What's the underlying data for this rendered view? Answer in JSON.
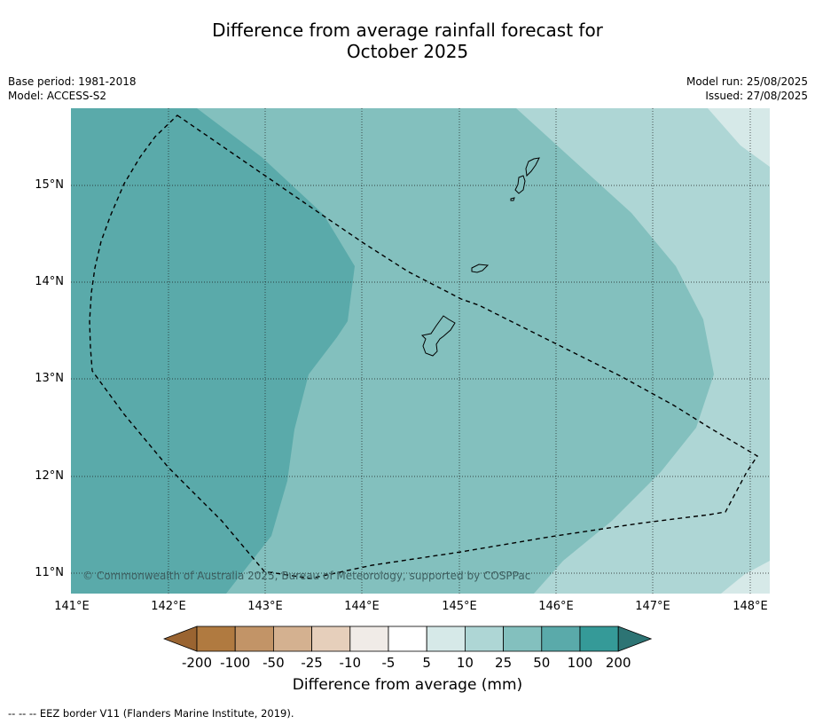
{
  "title_line1": "Difference from average rainfall forecast for",
  "title_line2": "October 2025",
  "meta": {
    "base_period": "Base period: 1981-2018",
    "model": "Model: ACCESS-S2",
    "model_run": "Model run: 25/08/2025",
    "issued": "Issued: 27/08/2025"
  },
  "map": {
    "lat_labels": [
      "15°N",
      "14°N",
      "13°N",
      "12°N",
      "11°N"
    ],
    "lon_labels": [
      "141°E",
      "142°E",
      "143°E",
      "144°E",
      "145°E",
      "146°E",
      "147°E",
      "148°E"
    ],
    "copyright": "© Commonwealth of Australia 2025, Bureau of Meteorology, supported by COSPPac",
    "colors": {
      "band_100": "#5aaaaa",
      "band_50": "#83c0be",
      "band_25": "#aed6d5",
      "band_10": "#d6e9e8"
    }
  },
  "colorbar": {
    "labels": [
      "-200",
      "-100",
      "-50",
      "-25",
      "-10",
      "-5",
      "5",
      "10",
      "25",
      "50",
      "100",
      "200"
    ],
    "colors": [
      "#9a6431",
      "#b07a40",
      "#c29467",
      "#d4b190",
      "#e6cfbb",
      "#f0ebe7",
      "#ffffff",
      "#d6e9e8",
      "#aed6d5",
      "#83c0be",
      "#5aaaaa",
      "#359a98",
      "#2d7474"
    ],
    "title": "Difference from average (mm)"
  },
  "footer": "-- -- -- EEZ border V11 (Flanders Marine Institute, 2019)."
}
